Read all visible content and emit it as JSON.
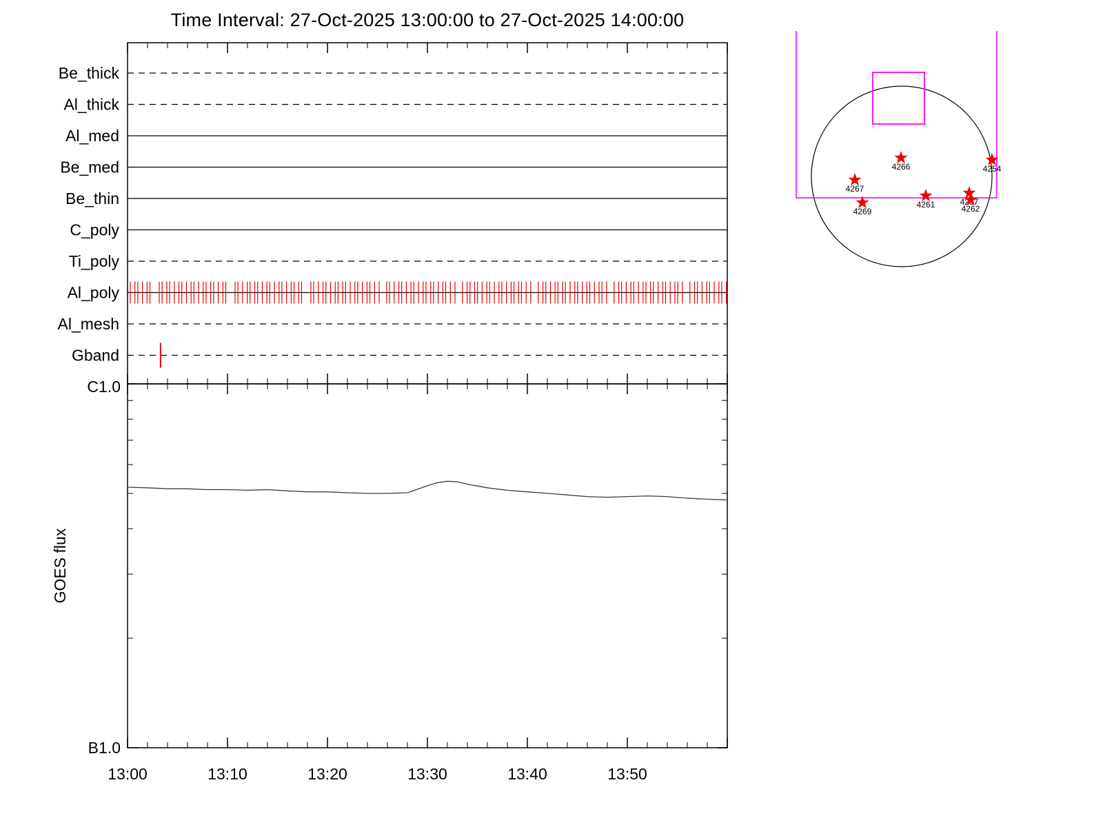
{
  "title": "Time Interval: 27-Oct-2025 13:00:00 to 27-Oct-2025 14:00:00",
  "colors": {
    "axis": "#000000",
    "exposure_tick": "#ee0000",
    "active_region_star": "#ee0000",
    "fov": "#ff00ff",
    "goes_line": "#3a3a3a"
  },
  "chart_data": [
    {
      "type": "timeline",
      "name": "xrt-filter-timeline",
      "x_axis": {
        "start": "13:00",
        "end": "14:00",
        "span_min": 60,
        "major_tick_min": 10,
        "minor_tick_min": 2
      },
      "channels": [
        {
          "label": "Be_thick",
          "line": "dashed",
          "events": []
        },
        {
          "label": "Al_thick",
          "line": "dashed",
          "events": []
        },
        {
          "label": "Al_med",
          "line": "solid",
          "events": []
        },
        {
          "label": "Be_med",
          "line": "solid",
          "events": []
        },
        {
          "label": "Be_thin",
          "line": "solid",
          "events": []
        },
        {
          "label": "C_poly",
          "line": "solid",
          "events": []
        },
        {
          "label": "Ti_poly",
          "line": "dashed",
          "events": []
        },
        {
          "label": "Al_poly",
          "line": "solid",
          "events": [],
          "event_train": {
            "start_min": 0.3,
            "end_min": 59.9,
            "cadence_min": 0.4
          }
        },
        {
          "label": "Al_mesh",
          "line": "dashed",
          "events": []
        },
        {
          "label": "Gband",
          "line": "dashed",
          "events": [
            3.3
          ]
        }
      ]
    },
    {
      "type": "line",
      "name": "goes-flux",
      "ylabel": "GOES flux",
      "y_scale": "log",
      "y_top_label": "C1.0",
      "y_bottom_label": "B1.0",
      "x_tick_labels": [
        "13:00",
        "13:10",
        "13:20",
        "13:30",
        "13:40",
        "13:50"
      ],
      "x_minutes": [
        0,
        2,
        4,
        6,
        8,
        10,
        12,
        14,
        16,
        18,
        20,
        22,
        24,
        26,
        28,
        30,
        31,
        32,
        33,
        34,
        36,
        38,
        40,
        42,
        44,
        46,
        48,
        50,
        52,
        54,
        56,
        58,
        60
      ],
      "flux_b_units": [
        5.2,
        5.18,
        5.15,
        5.15,
        5.12,
        5.12,
        5.1,
        5.12,
        5.08,
        5.05,
        5.05,
        5.02,
        5.0,
        5.0,
        5.02,
        5.25,
        5.35,
        5.4,
        5.38,
        5.3,
        5.18,
        5.1,
        5.05,
        5.0,
        4.95,
        4.9,
        4.88,
        4.9,
        4.92,
        4.9,
        4.85,
        4.82,
        4.8
      ]
    },
    {
      "type": "scatter",
      "name": "solar-disk-active-regions",
      "regions": [
        {
          "label": "4266",
          "x": -0.008,
          "y": -0.206
        },
        {
          "label": "4254",
          "x": 1.0,
          "y": -0.183
        },
        {
          "label": "4267",
          "x": -0.519,
          "y": 0.038
        },
        {
          "label": "4261",
          "x": 0.267,
          "y": 0.214
        },
        {
          "label": "4257",
          "x": 0.748,
          "y": 0.183
        },
        {
          "label": "4262",
          "x": 0.763,
          "y": 0.26
        },
        {
          "label": "4269",
          "x": -0.435,
          "y": 0.29
        }
      ],
      "fov_box": {
        "left": -0.321,
        "right": 0.252,
        "top": -1.153,
        "bottom": -0.58
      },
      "fov_bracket": {
        "left": -1.168,
        "right": 1.053,
        "top": -1.611,
        "bottom": 0.237
      }
    }
  ]
}
